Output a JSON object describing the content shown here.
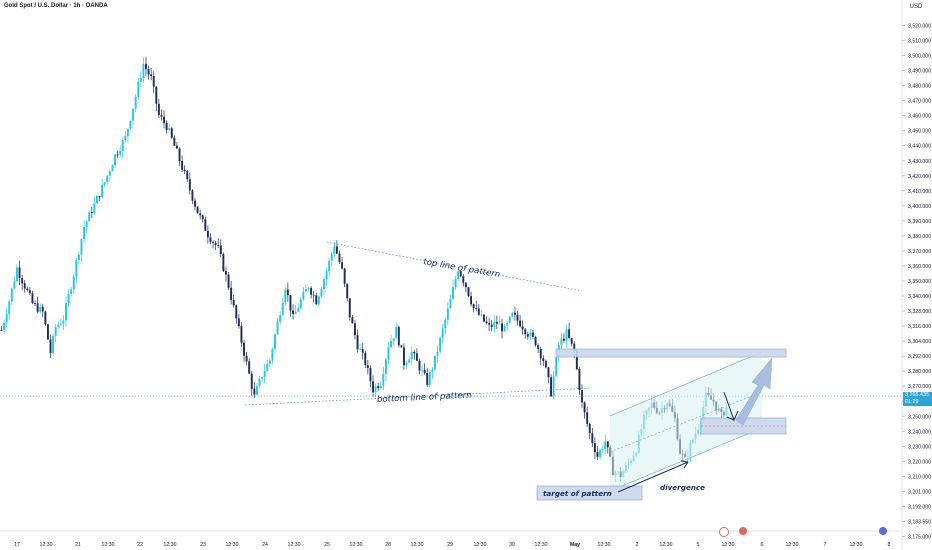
{
  "header": {
    "title": "Gold Spot / U.S. Dollar · 1h · OANDA",
    "currency": "USD"
  },
  "price_label": {
    "price": "3,265.435",
    "countdown": "01:29"
  },
  "annotations": {
    "top_line": "top line of pattern",
    "bottom_line": "bottom line of pattern",
    "target": "target of pattern",
    "divergence": "divergence"
  },
  "colors": {
    "up": "#26c6da",
    "down": "#1b2a57",
    "pattern_line": "#5b9bd5",
    "channel_fill": "#d9f0f0",
    "zone_fill": "#c9d6ee",
    "zone_stroke": "#8aa0d0",
    "arrow": "#9eb8de",
    "current_price": "#2ca4d6"
  },
  "chart_data": {
    "type": "candlestick",
    "x_ticks": [
      "17",
      "12:30",
      "21",
      "12:30",
      "22",
      "12:30",
      "23",
      "12:30",
      "24",
      "12:30",
      "25",
      "12:30",
      "28",
      "12:30",
      "29",
      "12:30",
      "30",
      "12:30",
      "May",
      "12:30",
      "2",
      "12:30",
      "5",
      "12:30",
      "6",
      "12:30",
      "7",
      "12:30",
      "8"
    ],
    "y_ticks": [
      "3,520.000",
      "3,510.000",
      "3,500.000",
      "3,490.000",
      "3,480.000",
      "3,470.000",
      "3,460.000",
      "3,450.000",
      "3,440.000",
      "3,430.000",
      "3,420.000",
      "3,410.000",
      "3,400.000",
      "3,390.000",
      "3,380.000",
      "3,370.000",
      "3,360.000",
      "3,350.000",
      "3,340.000",
      "3,328.000",
      "3,316.000",
      "3,304.000",
      "3,292.000",
      "3,280.000",
      "3,270.000",
      "3,260.000",
      "3,250.000",
      "3,240.000",
      "3,230.000",
      "3,220.000",
      "3,210.000",
      "3,201.000",
      "3,192.000",
      "3,183.550",
      "3,175.000"
    ],
    "ylim": [
      3175,
      3525
    ],
    "current_price": 3265.435,
    "anchors": [
      [
        0,
        3310
      ],
      [
        3,
        3330
      ],
      [
        6,
        3352
      ],
      [
        9,
        3340
      ],
      [
        12,
        3328
      ],
      [
        16,
        3322
      ],
      [
        19,
        3295
      ],
      [
        21,
        3312
      ],
      [
        24,
        3318
      ],
      [
        28,
        3348
      ],
      [
        32,
        3380
      ],
      [
        36,
        3395
      ],
      [
        40,
        3410
      ],
      [
        44,
        3428
      ],
      [
        48,
        3440
      ],
      [
        52,
        3468
      ],
      [
        55,
        3490
      ],
      [
        58,
        3480
      ],
      [
        61,
        3455
      ],
      [
        64,
        3448
      ],
      [
        68,
        3430
      ],
      [
        72,
        3410
      ],
      [
        76,
        3390
      ],
      [
        80,
        3375
      ],
      [
        84,
        3365
      ],
      [
        88,
        3340
      ],
      [
        92,
        3310
      ],
      [
        96,
        3280
      ],
      [
        98,
        3265
      ],
      [
        101,
        3280
      ],
      [
        104,
        3290
      ],
      [
        107,
        3315
      ],
      [
        110,
        3340
      ],
      [
        113,
        3318
      ],
      [
        116,
        3330
      ],
      [
        119,
        3340
      ],
      [
        122,
        3330
      ],
      [
        126,
        3350
      ],
      [
        129,
        3368
      ],
      [
        132,
        3350
      ],
      [
        135,
        3320
      ],
      [
        138,
        3300
      ],
      [
        141,
        3288
      ],
      [
        144,
        3270
      ],
      [
        147,
        3275
      ],
      [
        150,
        3300
      ],
      [
        153,
        3310
      ],
      [
        156,
        3288
      ],
      [
        159,
        3295
      ],
      [
        162,
        3285
      ],
      [
        165,
        3275
      ],
      [
        168,
        3290
      ],
      [
        171,
        3310
      ],
      [
        174,
        3330
      ],
      [
        177,
        3352
      ],
      [
        180,
        3340
      ],
      [
        183,
        3325
      ],
      [
        186,
        3318
      ],
      [
        189,
        3312
      ],
      [
        192,
        3315
      ],
      [
        195,
        3310
      ],
      [
        198,
        3320
      ],
      [
        201,
        3315
      ],
      [
        204,
        3308
      ],
      [
        207,
        3302
      ],
      [
        210,
        3290
      ],
      [
        213,
        3268
      ],
      [
        216,
        3300
      ],
      [
        219,
        3308
      ],
      [
        222,
        3295
      ],
      [
        225,
        3260
      ],
      [
        228,
        3240
      ],
      [
        231,
        3225
      ],
      [
        234,
        3235
      ],
      [
        237,
        3215
      ],
      [
        240,
        3212
      ],
      [
        243,
        3220
      ],
      [
        246,
        3230
      ],
      [
        249,
        3250
      ],
      [
        252,
        3260
      ],
      [
        255,
        3255
      ],
      [
        258,
        3262
      ],
      [
        261,
        3250
      ],
      [
        263,
        3228
      ],
      [
        265,
        3222
      ],
      [
        267,
        3232
      ],
      [
        270,
        3245
      ],
      [
        273,
        3265
      ],
      [
        276,
        3262
      ],
      [
        279,
        3252
      ],
      [
        281,
        3258
      ]
    ]
  }
}
